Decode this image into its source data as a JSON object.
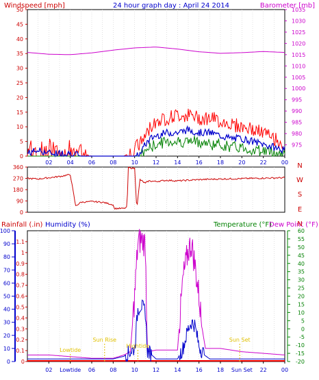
{
  "header": {
    "windspeed_label": "Windspeed [mph]",
    "title": "24 hour graph day : April 24 2014",
    "barometer_label": "Barometer [mb]"
  },
  "labels": {
    "rainfall": "Rainfall (.in)",
    "humidity": "Humidity (%)",
    "temperature": "Temperature (°F)",
    "dewpoint": "Dew Point (°F)",
    "lowtide": "Lowtide",
    "sunrise": "Sun Rise",
    "hightide": "Hightide",
    "sunset": "Sun Set"
  },
  "colors": {
    "wind_gust": "#ff0000",
    "wind_avg": "#0000cc",
    "wind_base": "#008000",
    "barometer": "#cc00cc",
    "direction": "#cc0000",
    "rainfall": "#ff0000",
    "humidity": "#0000cc",
    "temperature": "#008000",
    "dewpoint": "#cc00cc",
    "annotation": "#e0c000"
  },
  "chart_data": [
    {
      "type": "line",
      "title": "24 hour graph day : April 24 2014",
      "x_ticks": [
        "02",
        "04",
        "06",
        "08",
        "10",
        "12",
        "14",
        "16",
        "18",
        "20",
        "22",
        "00"
      ],
      "xlim": [
        0,
        24
      ],
      "y_left": {
        "label": "Windspeed [mph]",
        "lim": [
          0,
          50
        ],
        "ticks": [
          0,
          5,
          10,
          15,
          20,
          25,
          30,
          35,
          40,
          45,
          50
        ]
      },
      "y_right": {
        "label": "Barometer [mb]",
        "lim": [
          970,
          1035
        ],
        "ticks": [
          975,
          980,
          985,
          990,
          995,
          1000,
          1005,
          1010,
          1015,
          1020,
          1025,
          1030,
          1035
        ]
      },
      "series": [
        {
          "name": "Gust",
          "axis": "left",
          "x": [
            0,
            1,
            2,
            3,
            4,
            5,
            6,
            7,
            8,
            9,
            10,
            10.5,
            11,
            11.5,
            12,
            13,
            14,
            15,
            16,
            17,
            18,
            19,
            20,
            21,
            22,
            23,
            24
          ],
          "y": [
            4,
            5,
            3,
            4,
            4,
            1,
            0,
            0,
            0,
            0,
            2,
            4,
            7,
            10,
            12,
            13,
            14,
            14,
            13,
            13,
            12,
            11,
            10,
            9,
            8,
            6,
            4
          ]
        },
        {
          "name": "Average",
          "axis": "left",
          "x": [
            0,
            1,
            2,
            3,
            4,
            5,
            6,
            7,
            8,
            9,
            10,
            10.5,
            11,
            11.5,
            12,
            13,
            14,
            15,
            16,
            17,
            18,
            19,
            20,
            21,
            22,
            23,
            24
          ],
          "y": [
            1,
            2,
            1,
            1,
            1,
            0,
            0,
            0,
            0,
            0,
            0,
            1,
            4,
            6,
            7,
            8,
            8,
            9,
            8,
            8,
            7,
            6,
            6,
            5,
            4,
            3,
            2
          ]
        },
        {
          "name": "Min",
          "axis": "left",
          "x": [
            0,
            1,
            2,
            3,
            4,
            5,
            6,
            7,
            8,
            9,
            10,
            10.5,
            11,
            11.5,
            12,
            13,
            14,
            15,
            16,
            17,
            18,
            19,
            20,
            21,
            22,
            23,
            24
          ],
          "y": [
            0,
            0,
            0,
            0,
            0,
            0,
            0,
            0,
            0,
            0,
            0,
            0,
            2,
            3,
            4,
            5,
            5,
            5,
            5,
            4,
            4,
            3,
            3,
            2,
            2,
            1,
            1
          ]
        },
        {
          "name": "Barometer",
          "axis": "right",
          "x": [
            0,
            2,
            4,
            6,
            8,
            10,
            12,
            14,
            16,
            18,
            20,
            22,
            24
          ],
          "y": [
            1016,
            1015.2,
            1015,
            1015.8,
            1017,
            1018,
            1018.4,
            1017.5,
            1016.3,
            1015.6,
            1015.9,
            1016.4,
            1016
          ]
        }
      ]
    },
    {
      "type": "line",
      "x_ticks": [
        "02",
        "04",
        "06",
        "08",
        "10",
        "12",
        "14",
        "16",
        "18",
        "20",
        "22",
        "00"
      ],
      "xlim": [
        0,
        24
      ],
      "y_left": {
        "lim": [
          0,
          360
        ],
        "ticks": [
          0,
          90,
          180,
          270,
          360
        ]
      },
      "y_right_labels": [
        "N",
        "W",
        "S",
        "E",
        "N"
      ],
      "series": [
        {
          "name": "Wind direction",
          "x": [
            0,
            1,
            2,
            3,
            4,
            4.5,
            5,
            6,
            7,
            8,
            8.1,
            9,
            9.3,
            9.4,
            10,
            10.2,
            10.5,
            11,
            11.3,
            12,
            13,
            14,
            15,
            16,
            18,
            20,
            22,
            24
          ],
          "y": [
            270,
            265,
            275,
            285,
            300,
            50,
            80,
            85,
            80,
            60,
            30,
            30,
            40,
            355,
            350,
            30,
            260,
            230,
            250,
            245,
            255,
            250,
            255,
            260,
            265,
            268,
            272,
            275
          ]
        }
      ]
    },
    {
      "type": "line",
      "x_ticks": [
        "02",
        "Lowtide",
        "06",
        "08",
        "10",
        "12",
        "14",
        "16",
        "18",
        "Sun Set",
        "22",
        "00"
      ],
      "xlim": [
        0,
        24
      ],
      "y_left_rain": {
        "label": "Rainfall (.in)",
        "lim": [
          0,
          1.2
        ],
        "ticks": [
          0,
          0.1,
          0.2,
          0.3,
          0.4,
          0.5,
          0.6,
          0.7,
          0.8,
          0.9,
          1,
          1.1
        ]
      },
      "y_left_humidity": {
        "label": "Humidity (%)",
        "lim": [
          0,
          100
        ],
        "ticks": [
          0,
          10,
          20,
          30,
          40,
          50,
          60,
          70,
          80,
          90,
          100
        ]
      },
      "y_right": {
        "label": "Temperature (°F)",
        "lim": [
          -20,
          60
        ],
        "ticks": [
          -20,
          -15,
          -10,
          -5,
          0,
          5,
          10,
          15,
          20,
          25,
          30,
          35,
          40,
          45,
          50,
          55,
          60
        ]
      },
      "annotations": [
        {
          "text": "Lowtide",
          "x": 4
        },
        {
          "text": "Sun Rise",
          "x": 7.2
        },
        {
          "text": "Hightide",
          "x": 10.3
        },
        {
          "text": "Sun Set",
          "x": 19.8
        }
      ],
      "series": [
        {
          "name": "Rainfall",
          "axis": "rain",
          "x": [
            0,
            24
          ],
          "y": [
            0,
            0
          ]
        },
        {
          "name": "Humidity",
          "axis": "humidity",
          "x": [
            0,
            4,
            8,
            9,
            10,
            10.3,
            10.6,
            11,
            11.2,
            12,
            14,
            14.5,
            15,
            15.3,
            15.6,
            16,
            16.5,
            17,
            24
          ],
          "y": [
            2,
            2,
            2,
            4,
            10,
            40,
            43,
            38,
            8,
            2,
            2,
            10,
            25,
            30,
            28,
            12,
            5,
            2,
            2
          ]
        },
        {
          "name": "Temperature",
          "axis": "right",
          "x": [
            0,
            24
          ],
          "y": [
            -20,
            -20
          ]
        },
        {
          "name": "Dew Point",
          "axis": "right",
          "x": [
            0,
            2,
            4,
            6,
            8,
            9,
            9.6,
            10,
            10.3,
            10.6,
            11,
            11.2,
            12,
            13,
            14,
            14.5,
            15,
            15.3,
            15.6,
            16,
            16.3,
            16.6,
            17,
            18,
            20,
            22,
            24
          ],
          "y": [
            -16,
            -16,
            -17,
            -18,
            -18,
            -16,
            -14,
            20,
            52,
            55,
            52,
            -14,
            -13,
            -13,
            -13,
            30,
            48,
            52,
            40,
            20,
            0,
            -12,
            -12,
            -12,
            -14,
            -15,
            -16
          ]
        }
      ]
    }
  ]
}
